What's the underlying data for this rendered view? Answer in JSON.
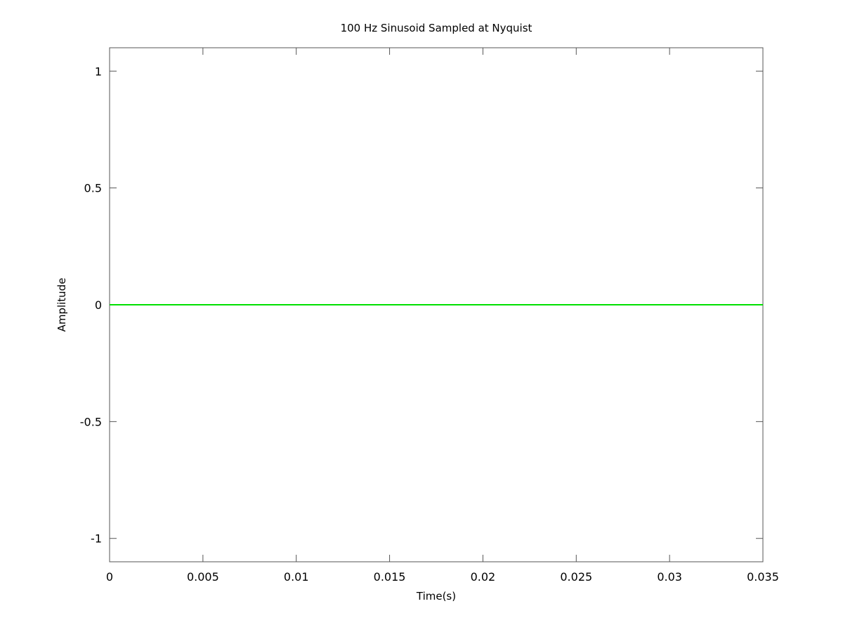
{
  "chart_data": {
    "type": "line",
    "title": "100 Hz Sinusoid Sampled at Nyquist",
    "xlabel": "Time(s)",
    "ylabel": "Amplitude",
    "xlim": [
      0,
      0.035
    ],
    "ylim": [
      -1.1,
      1.1
    ],
    "x_ticks": [
      0,
      0.005,
      0.01,
      0.015,
      0.02,
      0.025,
      0.03,
      0.035
    ],
    "x_tick_labels": [
      "0",
      "0.005",
      "0.01",
      "0.015",
      "0.02",
      "0.025",
      "0.03",
      "0.035"
    ],
    "y_ticks": [
      -1,
      -0.5,
      0,
      0.5,
      1
    ],
    "y_tick_labels": [
      "-1",
      "-0.5",
      "0",
      "0.5",
      "1"
    ],
    "grid": false,
    "series": [
      {
        "color": "#00e000",
        "x": [
          0,
          0.005,
          0.01,
          0.015,
          0.02,
          0.025,
          0.03,
          0.035
        ],
        "y": [
          0,
          0,
          0,
          0,
          0,
          0,
          0,
          0
        ]
      }
    ]
  }
}
